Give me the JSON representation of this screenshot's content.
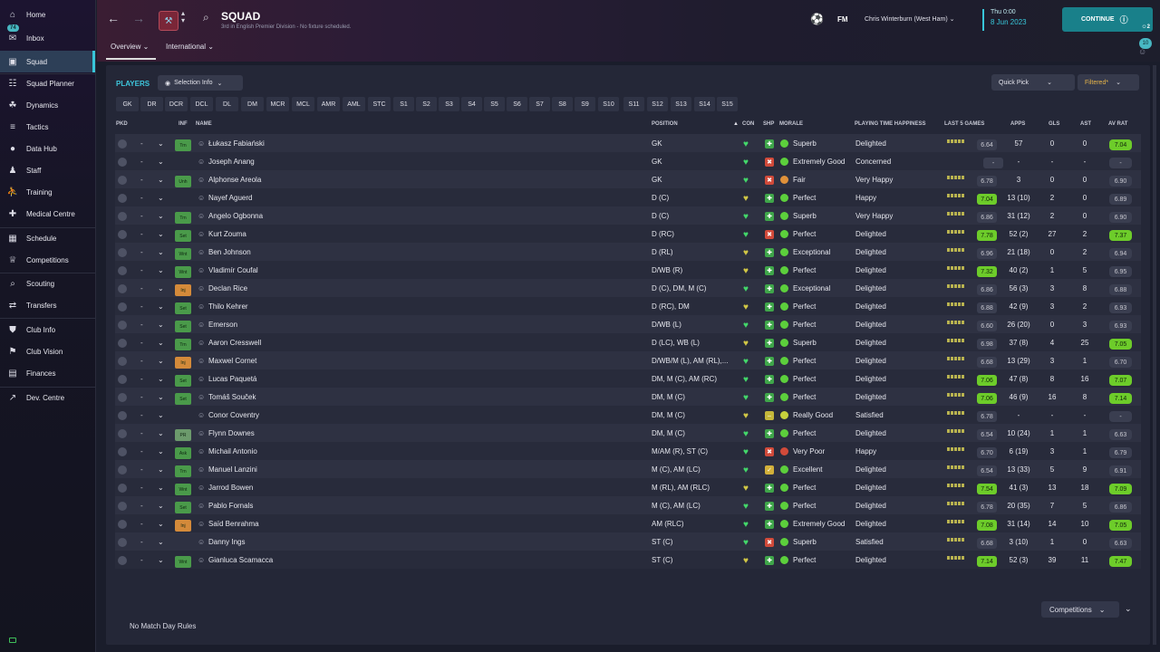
{
  "sidebar": {
    "items": [
      {
        "label": "Home",
        "icon": "home-icon"
      },
      {
        "label": "Inbox",
        "icon": "inbox-icon",
        "badge": "74"
      },
      {
        "label": "Squad",
        "icon": "shirt-icon",
        "active": true
      },
      {
        "label": "Squad Planner",
        "icon": "clipboard-icon"
      },
      {
        "label": "Dynamics",
        "icon": "dynamics-icon"
      },
      {
        "label": "Tactics",
        "icon": "tactics-icon"
      },
      {
        "label": "Data Hub",
        "icon": "data-hub-icon"
      },
      {
        "label": "Staff",
        "icon": "staff-icon"
      },
      {
        "label": "Training",
        "icon": "training-icon"
      },
      {
        "label": "Medical Centre",
        "icon": "medical-icon"
      },
      {
        "label": "Schedule",
        "icon": "calendar-icon"
      },
      {
        "label": "Competitions",
        "icon": "trophy-icon"
      },
      {
        "label": "Scouting",
        "icon": "scouting-icon"
      },
      {
        "label": "Transfers",
        "icon": "transfers-icon"
      },
      {
        "label": "Club Info",
        "icon": "shield-icon"
      },
      {
        "label": "Club Vision",
        "icon": "vision-icon"
      },
      {
        "label": "Finances",
        "icon": "finances-icon"
      },
      {
        "label": "Dev. Centre",
        "icon": "dev-centre-icon"
      }
    ]
  },
  "header": {
    "title": "SQUAD",
    "subtitle": "3rd in English Premier Division - No fixture scheduled.",
    "tabs": [
      "Overview",
      "International"
    ],
    "game_logo": "FM",
    "manager": "Chris Winterburn (West Ham)",
    "date_line1": "Thu 0:00",
    "date_line2": "8 Jun 2023",
    "continue_label": "CONTINUE",
    "continue_count": "2",
    "notif_count": "10"
  },
  "toolbar": {
    "players_label": "PLAYERS",
    "selection_info": "Selection Info",
    "quick_pick": "Quick Pick",
    "filtered": "Filtered*"
  },
  "position_filters": [
    "GK",
    "DR",
    "DCR",
    "DCL",
    "DL",
    "DM",
    "MCR",
    "MCL",
    "AMR",
    "AML",
    "STC",
    "S1",
    "S2",
    "S3",
    "S4",
    "S5",
    "S6",
    "S7",
    "S8",
    "S9",
    "S10",
    "S11",
    "S12",
    "S13",
    "S14",
    "S15"
  ],
  "columns": {
    "pkd": "PKD",
    "inf": "INF",
    "name": "NAME",
    "position": "POSITION",
    "con": "CON",
    "shp": "SHP",
    "morale": "MORALE",
    "pth": "PLAYING TIME HAPPINESS",
    "last5": "LAST 5 GAMES",
    "apps": "APPS",
    "gls": "GLS",
    "ast": "AST",
    "avrat": "AV RAT"
  },
  "players": [
    {
      "inf": "Trn",
      "name": "Łukasz Fabiański",
      "position": "GK",
      "morale": "Superb",
      "pth": "Delighted",
      "form": "6.64",
      "apps": "57",
      "gls": "0",
      "ast": "0",
      "avrat": "7.04"
    },
    {
      "inf": "",
      "name": "Joseph Anang",
      "position": "GK",
      "morale": "Extremely Good",
      "pth": "Concerned",
      "form": "-",
      "apps": "-",
      "gls": "-",
      "ast": "-",
      "avrat": "-"
    },
    {
      "inf": "Unh",
      "name": "Alphonse Areola",
      "position": "GK",
      "morale": "Fair",
      "pth": "Very Happy",
      "form": "6.78",
      "apps": "3",
      "gls": "0",
      "ast": "0",
      "avrat": "6.90"
    },
    {
      "inf": "",
      "name": "Nayef Aguerd",
      "position": "D (C)",
      "morale": "Perfect",
      "pth": "Happy",
      "form": "7.04",
      "apps": "13 (10)",
      "gls": "2",
      "ast": "0",
      "avrat": "6.89"
    },
    {
      "inf": "Trn",
      "name": "Angelo Ogbonna",
      "position": "D (C)",
      "morale": "Superb",
      "pth": "Very Happy",
      "form": "6.86",
      "apps": "31 (12)",
      "gls": "2",
      "ast": "0",
      "avrat": "6.90"
    },
    {
      "inf": "Set",
      "name": "Kurt Zouma",
      "position": "D (RC)",
      "morale": "Perfect",
      "pth": "Delighted",
      "form": "7.78",
      "apps": "52 (2)",
      "gls": "27",
      "ast": "2",
      "avrat": "7.37"
    },
    {
      "inf": "Wnt",
      "name": "Ben Johnson",
      "position": "D (RL)",
      "morale": "Exceptional",
      "pth": "Delighted",
      "form": "6.96",
      "apps": "21 (18)",
      "gls": "0",
      "ast": "2",
      "avrat": "6.94"
    },
    {
      "inf": "Wnt",
      "name": "Vladimír Coufal",
      "position": "D/WB (R)",
      "morale": "Perfect",
      "pth": "Delighted",
      "form": "7.32",
      "apps": "40 (2)",
      "gls": "1",
      "ast": "5",
      "avrat": "6.95"
    },
    {
      "inf": "Inj",
      "name": "Declan Rice",
      "position": "D (C), DM, M (C)",
      "morale": "Exceptional",
      "pth": "Delighted",
      "form": "6.86",
      "apps": "56 (3)",
      "gls": "3",
      "ast": "8",
      "avrat": "6.88"
    },
    {
      "inf": "Set",
      "name": "Thilo Kehrer",
      "position": "D (RC), DM",
      "morale": "Perfect",
      "pth": "Delighted",
      "form": "6.88",
      "apps": "42 (9)",
      "gls": "3",
      "ast": "2",
      "avrat": "6.93"
    },
    {
      "inf": "Set",
      "name": "Emerson",
      "position": "D/WB (L)",
      "morale": "Perfect",
      "pth": "Delighted",
      "form": "6.60",
      "apps": "26 (20)",
      "gls": "0",
      "ast": "3",
      "avrat": "6.93"
    },
    {
      "inf": "Trn",
      "name": "Aaron Cresswell",
      "position": "D (LC), WB (L)",
      "morale": "Superb",
      "pth": "Delighted",
      "form": "6.98",
      "apps": "37 (8)",
      "gls": "4",
      "ast": "25",
      "avrat": "7.05"
    },
    {
      "inf": "Inj",
      "name": "Maxwel Cornet",
      "position": "D/WB/M (L), AM (RL),...",
      "morale": "Perfect",
      "pth": "Delighted",
      "form": "6.68",
      "apps": "13 (29)",
      "gls": "3",
      "ast": "1",
      "avrat": "6.70"
    },
    {
      "inf": "Set",
      "name": "Lucas Paquetá",
      "position": "DM, M (C), AM (RC)",
      "morale": "Perfect",
      "pth": "Delighted",
      "form": "7.06",
      "apps": "47 (8)",
      "gls": "8",
      "ast": "16",
      "avrat": "7.07"
    },
    {
      "inf": "Set",
      "name": "Tomáš Souček",
      "position": "DM, M (C)",
      "morale": "Perfect",
      "pth": "Delighted",
      "form": "7.06",
      "apps": "46 (9)",
      "gls": "16",
      "ast": "8",
      "avrat": "7.14"
    },
    {
      "inf": "",
      "name": "Conor Coventry",
      "position": "DM, M (C)",
      "morale": "Really Good",
      "pth": "Satisfied",
      "form": "6.78",
      "apps": "-",
      "gls": "-",
      "ast": "-",
      "avrat": "-"
    },
    {
      "inf": "PR",
      "name": "Flynn Downes",
      "position": "DM, M (C)",
      "morale": "Perfect",
      "pth": "Delighted",
      "form": "6.54",
      "apps": "10 (24)",
      "gls": "1",
      "ast": "1",
      "avrat": "6.63"
    },
    {
      "inf": "Ask",
      "name": "Michail Antonio",
      "position": "M/AM (R), ST (C)",
      "morale": "Very Poor",
      "pth": "Happy",
      "form": "6.70",
      "apps": "6 (19)",
      "gls": "3",
      "ast": "1",
      "avrat": "6.79"
    },
    {
      "inf": "Trn",
      "name": "Manuel Lanzini",
      "position": "M (C), AM (LC)",
      "morale": "Excellent",
      "pth": "Delighted",
      "form": "6.54",
      "apps": "13 (33)",
      "gls": "5",
      "ast": "9",
      "avrat": "6.91"
    },
    {
      "inf": "Wnt",
      "name": "Jarrod Bowen",
      "position": "M (RL), AM (RLC)",
      "morale": "Perfect",
      "pth": "Delighted",
      "form": "7.54",
      "apps": "41 (3)",
      "gls": "13",
      "ast": "18",
      "avrat": "7.09"
    },
    {
      "inf": "Set",
      "name": "Pablo Fornals",
      "position": "M (C), AM (LC)",
      "morale": "Perfect",
      "pth": "Delighted",
      "form": "6.78",
      "apps": "20 (35)",
      "gls": "7",
      "ast": "5",
      "avrat": "6.86"
    },
    {
      "inf": "Inj",
      "name": "Saïd Benrahma",
      "position": "AM (RLC)",
      "morale": "Extremely Good",
      "pth": "Delighted",
      "form": "7.08",
      "apps": "31 (14)",
      "gls": "14",
      "ast": "10",
      "avrat": "7.05"
    },
    {
      "inf": "",
      "name": "Danny Ings",
      "position": "ST (C)",
      "morale": "Superb",
      "pth": "Satisfied",
      "form": "6.68",
      "apps": "3 (10)",
      "gls": "1",
      "ast": "0",
      "avrat": "6.63"
    },
    {
      "inf": "Wnt",
      "name": "Gianluca Scamacca",
      "position": "ST (C)",
      "morale": "Perfect",
      "pth": "Delighted",
      "form": "7.14",
      "apps": "52 (3)",
      "gls": "39",
      "ast": "11",
      "avrat": "7.47"
    }
  ],
  "footer": {
    "match_day_rules": "No Match Day Rules",
    "competitions": "Competitions"
  },
  "colors": {
    "accent": "#38c6d9",
    "good": "#6dcc2a",
    "panel": "#242737",
    "row_even": "#2e3142",
    "row_odd": "#282b3b"
  }
}
